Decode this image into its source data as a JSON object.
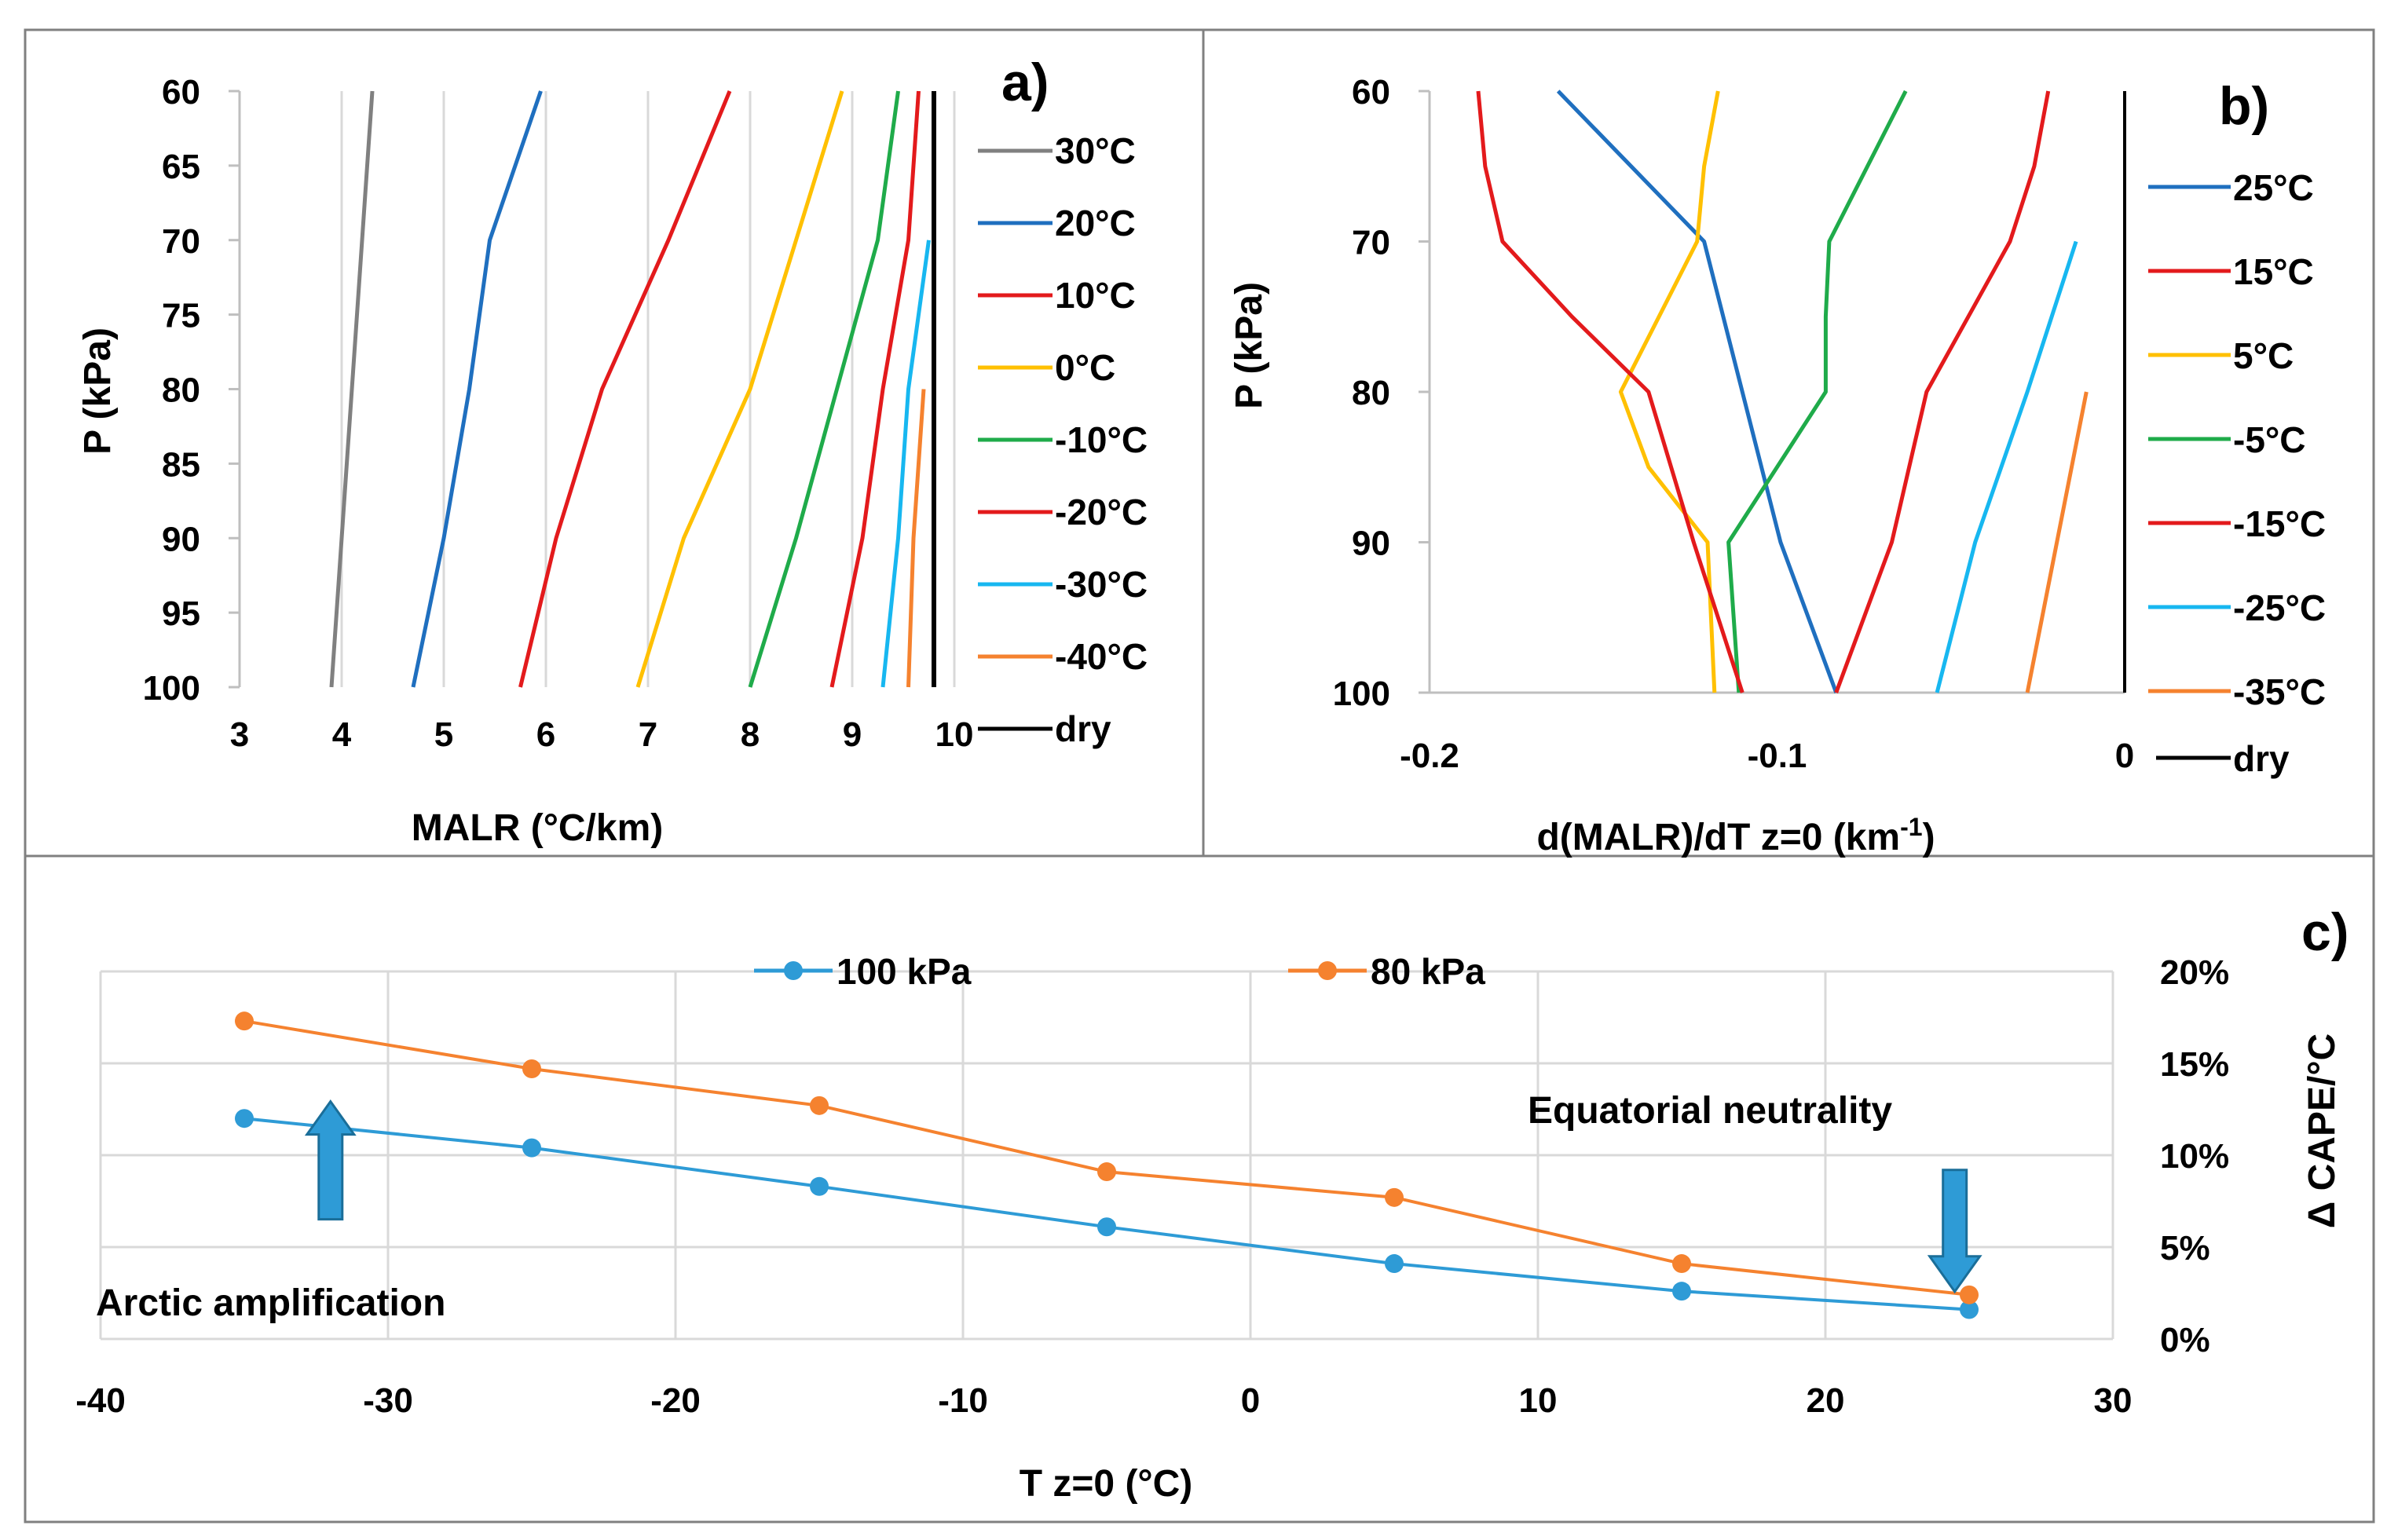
{
  "chart_data": [
    {
      "type": "line",
      "panel_label": "a)",
      "xlabel": "MALR (°C/km)",
      "ylabel": "P (kPa)",
      "xlim": [
        3,
        10
      ],
      "ylim": [
        60,
        100
      ],
      "y_inverted": true,
      "x_ticks": [
        3,
        4,
        5,
        6,
        7,
        8,
        9,
        10
      ],
      "y_ticks": [
        60,
        65,
        70,
        75,
        80,
        85,
        90,
        95,
        100
      ],
      "grid": "vertical",
      "legend_position": "right",
      "series": [
        {
          "name": "30°C",
          "color": "#808080",
          "points": [
            [
              4.3,
              60
            ],
            [
              4.2,
              70
            ],
            [
              4.1,
              80
            ],
            [
              4.0,
              90
            ],
            [
              3.9,
              100
            ]
          ]
        },
        {
          "name": "20°C",
          "color": "#1f6fbf",
          "points": [
            [
              5.95,
              60
            ],
            [
              5.45,
              70
            ],
            [
              5.25,
              80
            ],
            [
              5.0,
              90
            ],
            [
              4.7,
              100
            ]
          ]
        },
        {
          "name": "10°C",
          "color": "#e31a1c",
          "points": [
            [
              7.8,
              60
            ],
            [
              7.2,
              70
            ],
            [
              6.55,
              80
            ],
            [
              6.1,
              90
            ],
            [
              5.75,
              100
            ]
          ]
        },
        {
          "name": "0°C",
          "color": "#ffc000",
          "points": [
            [
              8.9,
              60
            ],
            [
              8.45,
              70
            ],
            [
              8.0,
              80
            ],
            [
              7.35,
              90
            ],
            [
              6.9,
              100
            ]
          ]
        },
        {
          "name": "-10°C",
          "color": "#1fab4a",
          "points": [
            [
              9.45,
              60
            ],
            [
              9.25,
              70
            ],
            [
              8.85,
              80
            ],
            [
              8.45,
              90
            ],
            [
              8.0,
              100
            ]
          ]
        },
        {
          "name": "-20°C",
          "color": "#e31a1c",
          "points": [
            [
              9.65,
              60
            ],
            [
              9.55,
              70
            ],
            [
              9.3,
              80
            ],
            [
              9.1,
              90
            ],
            [
              8.8,
              100
            ]
          ]
        },
        {
          "name": "-30°C",
          "color": "#17b7f0",
          "points": [
            [
              9.75,
              70
            ],
            [
              9.55,
              80
            ],
            [
              9.45,
              90
            ],
            [
              9.3,
              100
            ]
          ]
        },
        {
          "name": "-40°C",
          "color": "#f5822f",
          "points": [
            [
              9.7,
              80
            ],
            [
              9.6,
              90
            ],
            [
              9.55,
              100
            ]
          ]
        },
        {
          "name": "dry",
          "color": "#000000",
          "points": [
            [
              9.8,
              60
            ],
            [
              9.8,
              100
            ]
          ]
        }
      ]
    },
    {
      "type": "line",
      "panel_label": "b)",
      "xlabel": "d(MALR)/dT z=0 (km",
      "xlabel_sup": "-1",
      "xlabel_end": ")",
      "ylabel": "P (kPa)",
      "xlim": [
        -0.2,
        0
      ],
      "ylim": [
        60,
        100
      ],
      "y_inverted": true,
      "x_ticks": [
        "-0.2",
        "-0.1",
        "0"
      ],
      "y_ticks": [
        60,
        70,
        80,
        90,
        100
      ],
      "grid": "none",
      "legend_position": "right",
      "series": [
        {
          "name": "25°C",
          "color": "#1f6fbf",
          "points": [
            [
              -0.163,
              60
            ],
            [
              -0.121,
              70
            ],
            [
              -0.099,
              90
            ],
            [
              -0.083,
              100
            ]
          ]
        },
        {
          "name": "15°C",
          "color": "#e31a1c",
          "points": [
            [
              -0.022,
              60
            ],
            [
              -0.026,
              65
            ],
            [
              -0.033,
              70
            ],
            [
              -0.045,
              75
            ],
            [
              -0.057,
              80
            ],
            [
              -0.067,
              90
            ],
            [
              -0.083,
              100
            ]
          ]
        },
        {
          "name": "5°C",
          "color": "#ffc000",
          "points": [
            [
              -0.117,
              60
            ],
            [
              -0.121,
              65
            ],
            [
              -0.123,
              70
            ],
            [
              -0.134,
              75
            ],
            [
              -0.145,
              80
            ],
            [
              -0.137,
              85
            ],
            [
              -0.12,
              90
            ],
            [
              -0.118,
              100
            ]
          ]
        },
        {
          "name": "-5°C",
          "color": "#1fab4a",
          "points": [
            [
              -0.063,
              60
            ],
            [
              -0.085,
              70
            ],
            [
              -0.086,
              75
            ],
            [
              -0.086,
              80
            ],
            [
              -0.114,
              90
            ],
            [
              -0.111,
              100
            ]
          ]
        },
        {
          "name": "-15°C",
          "color": "#e31a1c",
          "points": [
            [
              -0.186,
              60
            ],
            [
              -0.184,
              65
            ],
            [
              -0.179,
              70
            ],
            [
              -0.159,
              75
            ],
            [
              -0.137,
              80
            ],
            [
              -0.124,
              90
            ],
            [
              -0.11,
              100
            ]
          ]
        },
        {
          "name": "-25°C",
          "color": "#17b7f0",
          "points": [
            [
              -0.014,
              70
            ],
            [
              -0.021,
              75
            ],
            [
              -0.028,
              80
            ],
            [
              -0.043,
              90
            ],
            [
              -0.054,
              100
            ]
          ]
        },
        {
          "name": "-35°C",
          "color": "#f5822f",
          "points": [
            [
              -0.011,
              80
            ],
            [
              -0.028,
              100
            ]
          ]
        },
        {
          "name": "dry",
          "color": "#000000",
          "points": [
            [
              0,
              60
            ],
            [
              0,
              100
            ]
          ]
        }
      ]
    },
    {
      "type": "line",
      "panel_label": "c)",
      "xlabel": "T z=0 (°C)",
      "ylabel": "Δ CAPE/°C",
      "xlim": [
        -40,
        30
      ],
      "ylim": [
        0,
        20
      ],
      "x_ticks": [
        -40,
        -30,
        -20,
        -10,
        0,
        10,
        20,
        30
      ],
      "y_ticks": [
        "0%",
        "5%",
        "10%",
        "15%",
        "20%"
      ],
      "grid": "on",
      "legend_position": "top",
      "series": [
        {
          "name": "100 kPa",
          "color": "#2e9bd6",
          "x": [
            -35,
            -25,
            -15,
            -5,
            5,
            15,
            25
          ],
          "values": [
            12.0,
            10.4,
            8.3,
            6.1,
            4.1,
            2.6,
            1.6
          ]
        },
        {
          "name": "80 kPa",
          "color": "#f5822f",
          "x": [
            -35,
            -25,
            -15,
            -5,
            5,
            15,
            25
          ],
          "values": [
            17.3,
            14.7,
            12.7,
            9.1,
            7.7,
            4.1,
            2.4
          ]
        }
      ],
      "annotations": [
        {
          "text": "Arctic amplification",
          "x": -32,
          "direction": "up",
          "arrow_value": 11
        },
        {
          "text": "Equatorial neutrality",
          "x": 24.5,
          "direction": "down",
          "arrow_value": 4.5
        }
      ]
    }
  ],
  "colors": {
    "arrow_fill": "#2e9bd6",
    "arrow_stroke": "#1a6e99",
    "frame": "#808080",
    "grid": "#d9d9d9"
  }
}
